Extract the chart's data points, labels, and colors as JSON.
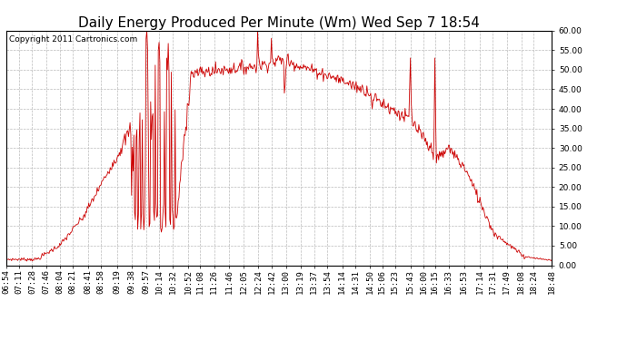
{
  "title": "Daily Energy Produced Per Minute (Wm) Wed Sep 7 18:54",
  "copyright": "Copyright 2011 Cartronics.com",
  "line_color": "#cc0000",
  "bg_color": "#ffffff",
  "plot_bg_color": "#ffffff",
  "grid_color": "#bbbbbb",
  "ylim": [
    0.0,
    60.0
  ],
  "yticks": [
    0.0,
    5.0,
    10.0,
    15.0,
    20.0,
    25.0,
    30.0,
    35.0,
    40.0,
    45.0,
    50.0,
    55.0,
    60.0
  ],
  "title_fontsize": 11,
  "tick_fontsize": 6.5,
  "copyright_fontsize": 6.5,
  "tick_times_str": [
    "06:54",
    "07:11",
    "07:28",
    "07:46",
    "08:04",
    "08:21",
    "08:41",
    "08:58",
    "09:19",
    "09:38",
    "09:57",
    "10:14",
    "10:32",
    "10:52",
    "11:08",
    "11:26",
    "11:46",
    "12:05",
    "12:24",
    "12:42",
    "13:00",
    "13:19",
    "13:37",
    "13:54",
    "14:14",
    "14:31",
    "14:50",
    "15:06",
    "15:23",
    "15:43",
    "16:00",
    "16:15",
    "16:33",
    "16:53",
    "17:14",
    "17:31",
    "17:49",
    "18:08",
    "18:24",
    "18:48"
  ],
  "start_hhmm": "06:54",
  "end_hhmm": "18:48"
}
